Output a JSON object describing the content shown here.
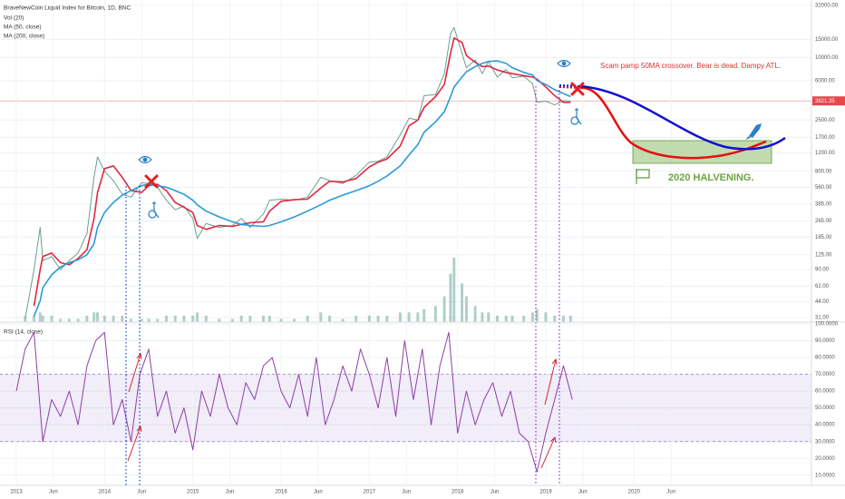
{
  "chart_data": [
    {
      "type": "line",
      "log_scale": true,
      "grid": true,
      "x": [
        2013.1,
        2013.2,
        2013.27,
        2013.3,
        2013.4,
        2013.5,
        2013.6,
        2013.7,
        2013.8,
        2013.88,
        2013.92,
        2014.0,
        2014.1,
        2014.2,
        2014.3,
        2014.42,
        2014.5,
        2014.6,
        2014.7,
        2014.8,
        2014.9,
        2015.0,
        2015.05,
        2015.15,
        2015.3,
        2015.45,
        2015.55,
        2015.65,
        2015.8,
        2015.87,
        2016.0,
        2016.15,
        2016.3,
        2016.45,
        2016.55,
        2016.7,
        2016.85,
        2017.0,
        2017.1,
        2017.2,
        2017.35,
        2017.45,
        2017.55,
        2017.62,
        2017.75,
        2017.85,
        2017.92,
        2017.96,
        2018.05,
        2018.1,
        2018.2,
        2018.28,
        2018.35,
        2018.45,
        2018.55,
        2018.62,
        2018.75,
        2018.85,
        2018.9,
        2019.0,
        2019.1,
        2019.2,
        2019.28
      ],
      "xlim": [
        2012.815,
        2022.01
      ],
      "ylim": [
        28,
        36000
      ],
      "yticks": [
        {
          "value": 32000,
          "label": "32000.00"
        },
        {
          "value": 15000,
          "label": "15000.00"
        },
        {
          "value": 10000,
          "label": "10000.00"
        },
        {
          "value": 6000,
          "label": "6000.00"
        },
        {
          "value": 2500,
          "label": "2500.00"
        },
        {
          "value": 1700,
          "label": "1700.00"
        },
        {
          "value": 1200,
          "label": "1200.00"
        },
        {
          "value": 800,
          "label": "800.00"
        },
        {
          "value": 560,
          "label": "560.00"
        },
        {
          "value": 385,
          "label": "385.00"
        },
        {
          "value": 265,
          "label": "265.00"
        },
        {
          "value": 185,
          "label": "185.00"
        },
        {
          "value": 125,
          "label": "125.00"
        },
        {
          "value": 90,
          "label": "90.00"
        },
        {
          "value": 62,
          "label": "62.00"
        },
        {
          "value": 44,
          "label": "44.00"
        },
        {
          "value": 31,
          "label": "31.00"
        }
      ],
      "y2lim": [
        0,
        100
      ],
      "last_price": 3821.35,
      "series": [
        {
          "name": "BraveNewCoin Liquid Index for Bitcoin, 1D, BNC",
          "color": "#6a9f92",
          "values": [
            30,
            90,
            230,
            110,
            120,
            90,
            110,
            130,
            200,
            700,
            1100,
            800,
            650,
            480,
            450,
            620,
            610,
            560,
            420,
            340,
            370,
            280,
            180,
            250,
            230,
            240,
            280,
            230,
            310,
            420,
            430,
            420,
            450,
            700,
            650,
            610,
            730,
            980,
            1000,
            1100,
            1800,
            2600,
            2500,
            4300,
            4400,
            7000,
            17000,
            19500,
            11000,
            8000,
            9500,
            7000,
            9200,
            6500,
            7700,
            6400,
            6600,
            5600,
            3700,
            3800,
            3500,
            3850,
            3821
          ]
        },
        {
          "name": "Vol (20)",
          "color": "#8fbcb0",
          "axis": "y2",
          "values": [
            2,
            2,
            3,
            2,
            2,
            1,
            1,
            1,
            2,
            3,
            3,
            2,
            2,
            2,
            1,
            1,
            1,
            1,
            2,
            2,
            2,
            2,
            3,
            2,
            1,
            1,
            2,
            2,
            2,
            2,
            1,
            1,
            2,
            3,
            2,
            1,
            2,
            2,
            2,
            2,
            3,
            3,
            3,
            4,
            5,
            8,
            15,
            20,
            12,
            8,
            5,
            3,
            3,
            2,
            2,
            2,
            2,
            3,
            4,
            3,
            2,
            2,
            2
          ],
          "bar": true
        },
        {
          "name": "MA (50, close)",
          "color": "#e0283f",
          "values": [
            null,
            40,
            90,
            120,
            130,
            105,
            100,
            115,
            140,
            280,
            500,
            850,
            900,
            700,
            520,
            500,
            580,
            600,
            520,
            400,
            360,
            320,
            240,
            220,
            240,
            235,
            245,
            255,
            260,
            330,
            410,
            425,
            430,
            550,
            640,
            630,
            680,
            880,
            980,
            1050,
            1400,
            2200,
            2500,
            3300,
            4200,
            5500,
            11000,
            15500,
            14000,
            10500,
            9000,
            8200,
            8300,
            7600,
            7200,
            7000,
            6700,
            6500,
            6200,
            5200,
            4300,
            3700,
            3700
          ]
        },
        {
          "name": "MA (200, close)",
          "color": "#2a9ad8",
          "values": [
            null,
            32,
            45,
            60,
            80,
            95,
            105,
            112,
            125,
            160,
            230,
            320,
            400,
            470,
            520,
            580,
            600,
            580,
            560,
            520,
            480,
            420,
            380,
            330,
            290,
            260,
            245,
            240,
            235,
            240,
            260,
            290,
            330,
            380,
            420,
            470,
            520,
            580,
            640,
            720,
            900,
            1150,
            1450,
            1900,
            2400,
            3000,
            4200,
            5200,
            6500,
            7300,
            8200,
            8800,
            9200,
            9300,
            8800,
            8000,
            7200,
            6800,
            6000,
            5500,
            4900,
            4500,
            4200
          ]
        }
      ],
      "annotations": [
        "Scam pamp 50MA crossover. Bear is dead. Dampy ATL.",
        "2020 HALVENING."
      ]
    },
    {
      "type": "line",
      "title": "RSI (14, close)",
      "grid": true,
      "x": [
        2013.0,
        2013.1,
        2013.2,
        2013.3,
        2013.4,
        2013.5,
        2013.6,
        2013.7,
        2013.8,
        2013.9,
        2014.0,
        2014.1,
        2014.2,
        2014.3,
        2014.4,
        2014.5,
        2014.6,
        2014.7,
        2014.8,
        2014.9,
        2015.0,
        2015.1,
        2015.2,
        2015.3,
        2015.4,
        2015.5,
        2015.6,
        2015.7,
        2015.8,
        2015.9,
        2016.0,
        2016.1,
        2016.2,
        2016.3,
        2016.4,
        2016.5,
        2016.6,
        2016.7,
        2016.8,
        2016.9,
        2017.0,
        2017.1,
        2017.2,
        2017.3,
        2017.4,
        2017.5,
        2017.6,
        2017.7,
        2017.8,
        2017.9,
        2018.0,
        2018.1,
        2018.2,
        2018.3,
        2018.4,
        2018.5,
        2018.6,
        2018.7,
        2018.8,
        2018.9,
        2019.0,
        2019.1,
        2019.2,
        2019.3
      ],
      "xlim": [
        2012.815,
        2022.01
      ],
      "xticks": [
        2013,
        {
          "value": 2013.42,
          "label": "Jun"
        },
        2014,
        {
          "value": 2014.42,
          "label": "Jun"
        },
        2015,
        {
          "value": 2015.42,
          "label": "Jun"
        },
        2016,
        {
          "value": 2016.42,
          "label": "Jun"
        },
        2017,
        {
          "value": 2017.42,
          "label": "Jun"
        },
        2018,
        {
          "value": 2018.42,
          "label": "Jun"
        },
        2019,
        {
          "value": 2019.42,
          "label": "Jun"
        },
        2020,
        {
          "value": 2020.42,
          "label": "Jun"
        }
      ],
      "ylim": [
        5,
        100
      ],
      "yticks": [
        {
          "value": 100,
          "label": "100.0000"
        },
        {
          "value": 90,
          "label": "90.0000"
        },
        {
          "value": 80,
          "label": "80.0000"
        },
        {
          "value": 70,
          "label": "70.0000"
        },
        {
          "value": 60,
          "label": "60.0000"
        },
        {
          "value": 50,
          "label": "50.0000"
        },
        {
          "value": 40,
          "label": "40.0000"
        },
        {
          "value": 30,
          "label": "30.0000"
        },
        {
          "value": 20,
          "label": "20.0000"
        },
        {
          "value": 10,
          "label": "10.0000"
        }
      ],
      "bands": [
        30,
        70
      ],
      "series": [
        {
          "color": "#8e3fa6",
          "values": [
            60,
            85,
            95,
            30,
            55,
            45,
            60,
            40,
            75,
            90,
            95,
            40,
            55,
            30,
            70,
            85,
            45,
            60,
            35,
            50,
            25,
            60,
            45,
            70,
            50,
            40,
            65,
            55,
            75,
            80,
            60,
            50,
            70,
            45,
            80,
            40,
            55,
            75,
            60,
            85,
            70,
            50,
            80,
            45,
            90,
            55,
            85,
            40,
            75,
            95,
            35,
            60,
            40,
            55,
            65,
            45,
            60,
            35,
            30,
            12,
            35,
            55,
            75,
            55
          ]
        }
      ]
    }
  ]
}
